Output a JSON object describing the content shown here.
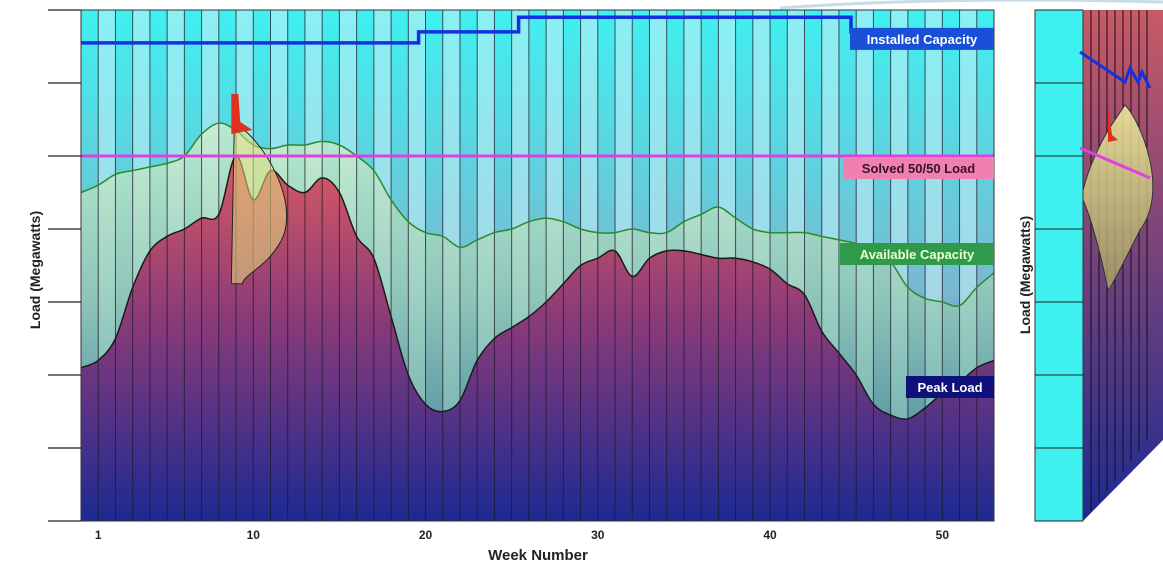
{
  "chart_data": {
    "type": "area",
    "xlabel": "Week Number",
    "ylabel": "Load (Megawatts)",
    "xlim": [
      0,
      53
    ],
    "ylim": [
      0,
      7
    ],
    "x_ticks": [
      1,
      10,
      20,
      30,
      40,
      50
    ],
    "series": [
      {
        "name": "Installed Capacity",
        "kind": "step",
        "color": "#1530e0",
        "label_bg": "#1a50d8",
        "label_color": "#ffffff",
        "points": [
          [
            0,
            6.55
          ],
          [
            19.6,
            6.55
          ],
          [
            19.6,
            6.7
          ],
          [
            25.4,
            6.7
          ],
          [
            25.4,
            6.9
          ],
          [
            44.7,
            6.9
          ],
          [
            44.7,
            6.7
          ],
          [
            53,
            6.7
          ]
        ]
      },
      {
        "name": "Solved 50/50 Load",
        "kind": "line",
        "color": "#e040e0",
        "label_bg": "#f080b0",
        "label_color": "#3a1030",
        "points": [
          [
            0,
            5.0
          ],
          [
            53,
            5.0
          ]
        ]
      },
      {
        "name": "Available Capacity",
        "kind": "area",
        "color": "#2a8a2a",
        "label_bg": "#2f9a4a",
        "label_color": "#e8ffd0",
        "points": [
          [
            0,
            4.5
          ],
          [
            1,
            4.6
          ],
          [
            2,
            4.75
          ],
          [
            3,
            4.8
          ],
          [
            4,
            4.85
          ],
          [
            5,
            4.9
          ],
          [
            6,
            5.0
          ],
          [
            7,
            5.3
          ],
          [
            8,
            5.45
          ],
          [
            9,
            5.35
          ],
          [
            10,
            5.15
          ],
          [
            11,
            5.1
          ],
          [
            12,
            5.15
          ],
          [
            13,
            5.15
          ],
          [
            14,
            5.2
          ],
          [
            15,
            5.15
          ],
          [
            16,
            5.0
          ],
          [
            17,
            4.8
          ],
          [
            18,
            4.4
          ],
          [
            19,
            4.1
          ],
          [
            20,
            3.95
          ],
          [
            21,
            3.9
          ],
          [
            22,
            3.75
          ],
          [
            23,
            3.85
          ],
          [
            24,
            3.95
          ],
          [
            25,
            4.0
          ],
          [
            26,
            4.1
          ],
          [
            27,
            4.15
          ],
          [
            28,
            4.1
          ],
          [
            29,
            4.0
          ],
          [
            30,
            3.95
          ],
          [
            31,
            3.95
          ],
          [
            32,
            4.0
          ],
          [
            33,
            3.95
          ],
          [
            34,
            3.95
          ],
          [
            35,
            4.1
          ],
          [
            36,
            4.2
          ],
          [
            37,
            4.3
          ],
          [
            38,
            4.15
          ],
          [
            39,
            4.0
          ],
          [
            40,
            3.95
          ],
          [
            41,
            3.95
          ],
          [
            42,
            3.95
          ],
          [
            43,
            3.9
          ],
          [
            44,
            3.85
          ],
          [
            45,
            3.8
          ],
          [
            46,
            3.7
          ],
          [
            47,
            3.55
          ],
          [
            48,
            3.2
          ],
          [
            49,
            3.05
          ],
          [
            50,
            3.0
          ],
          [
            51,
            2.95
          ],
          [
            52,
            3.2
          ],
          [
            53,
            3.4
          ]
        ]
      },
      {
        "name": "Peak Load",
        "kind": "area",
        "color": "#1a1a1a",
        "label_bg": "#10107a",
        "label_color": "#ffffff",
        "points": [
          [
            0,
            2.1
          ],
          [
            1,
            2.2
          ],
          [
            2,
            2.5
          ],
          [
            3,
            3.2
          ],
          [
            4,
            3.7
          ],
          [
            5,
            3.9
          ],
          [
            6,
            4.0
          ],
          [
            7,
            4.15
          ],
          [
            8,
            4.2
          ],
          [
            9,
            5.0
          ],
          [
            10,
            4.4
          ],
          [
            11,
            4.8
          ],
          [
            12,
            4.6
          ],
          [
            13,
            4.5
          ],
          [
            14,
            4.7
          ],
          [
            15,
            4.5
          ],
          [
            16,
            3.9
          ],
          [
            17,
            3.6
          ],
          [
            18,
            2.8
          ],
          [
            19,
            2.0
          ],
          [
            20,
            1.6
          ],
          [
            21,
            1.5
          ],
          [
            22,
            1.65
          ],
          [
            23,
            2.2
          ],
          [
            24,
            2.5
          ],
          [
            25,
            2.65
          ],
          [
            26,
            2.8
          ],
          [
            27,
            3.0
          ],
          [
            28,
            3.25
          ],
          [
            29,
            3.5
          ],
          [
            30,
            3.6
          ],
          [
            31,
            3.7
          ],
          [
            32,
            3.35
          ],
          [
            33,
            3.6
          ],
          [
            34,
            3.7
          ],
          [
            35,
            3.7
          ],
          [
            36,
            3.65
          ],
          [
            37,
            3.6
          ],
          [
            38,
            3.6
          ],
          [
            39,
            3.55
          ],
          [
            40,
            3.45
          ],
          [
            41,
            3.25
          ],
          [
            42,
            3.1
          ],
          [
            43,
            2.6
          ],
          [
            44,
            2.3
          ],
          [
            45,
            2.0
          ],
          [
            46,
            1.6
          ],
          [
            47,
            1.45
          ],
          [
            48,
            1.4
          ],
          [
            49,
            1.55
          ],
          [
            50,
            1.75
          ],
          [
            51,
            1.9
          ],
          [
            52,
            2.1
          ],
          [
            53,
            2.2
          ]
        ]
      }
    ],
    "distribution_spike": {
      "week": 8.9,
      "top": 5.85,
      "bottom": 3.25,
      "color": "#e03020"
    },
    "colors": {
      "background_cyan": "#3ff0f0",
      "band_light": "#c8f0f8",
      "area_top": "#d85060",
      "area_bottom": "#1a2a90"
    }
  }
}
